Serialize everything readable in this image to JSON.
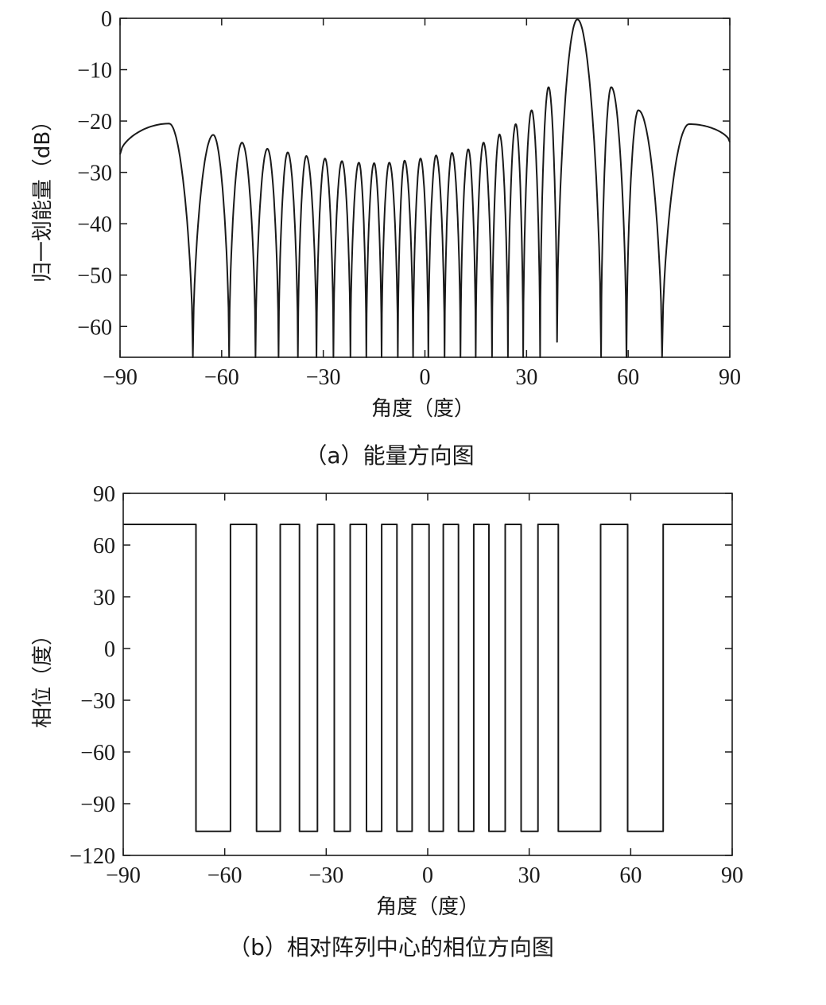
{
  "chart_data": [
    {
      "type": "line",
      "caption": "（a）能量方向图",
      "xlabel": "角度（度）",
      "ylabel": "归一划能量（dB）",
      "xlim": [
        -90,
        90
      ],
      "ylim": [
        -66,
        0
      ],
      "xticks": [
        -90,
        -60,
        -30,
        0,
        30,
        60,
        90
      ],
      "yticks": [
        0,
        -10,
        -20,
        -30,
        -40,
        -50,
        -60
      ],
      "xtick_labels": [
        "−90",
        "−60",
        "−30",
        "0",
        "30",
        "60",
        "90"
      ],
      "ytick_labels": [
        "0",
        "−10",
        "−20",
        "−30",
        "−40",
        "−50",
        "−60"
      ],
      "grid": false,
      "series": [
        {
          "x": [
            -90,
            -75.5,
            -68.5,
            -62.5,
            -57.8,
            -54,
            -50,
            -46.5,
            -43.2,
            -40.5,
            -37.5,
            -35,
            -32,
            -29.5,
            -27,
            -24.5,
            -22,
            -19.5,
            -17.3,
            -15,
            -12.8,
            -10.5,
            -8,
            -6,
            -3.5,
            -1.3,
            1,
            3.3,
            5.8,
            8,
            10.5,
            12.8,
            15,
            17.3,
            19.8,
            22,
            24.5,
            26.8,
            29,
            31.5,
            34,
            36.5,
            39,
            45,
            52,
            55,
            59.5,
            63,
            70,
            78,
            90
          ],
          "y": [
            -26.5,
            -20.5,
            -66,
            -22.7,
            -66,
            -24.2,
            -66,
            -25.4,
            -66,
            -26.1,
            -66,
            -26.8,
            -66,
            -27.3,
            -66,
            -27.8,
            -66,
            -28.1,
            -66,
            -28.2,
            -66,
            -28.1,
            -66,
            -27.7,
            -66,
            -27.3,
            -66,
            -26.7,
            -66,
            -26.2,
            -66,
            -25.5,
            -66,
            -24.2,
            -66,
            -22.6,
            -66,
            -20.6,
            -66,
            -17.9,
            -66,
            -13.4,
            -63,
            -0.2,
            -66,
            -13.4,
            -66,
            -17.9,
            -66,
            -20.6,
            -24.1
          ]
        }
      ]
    },
    {
      "type": "line",
      "caption": "（b）相对阵列中心的相位方向图",
      "xlabel": "角度（度）",
      "ylabel": "相位（度）",
      "xlim": [
        -90,
        90
      ],
      "ylim": [
        -120,
        90
      ],
      "xticks": [
        -90,
        -60,
        -30,
        0,
        30,
        60,
        90
      ],
      "yticks": [
        90,
        60,
        30,
        0,
        -30,
        -60,
        -90,
        -120
      ],
      "xtick_labels": [
        "−90",
        "−60",
        "−30",
        "0",
        "30",
        "60",
        "90"
      ],
      "ytick_labels": [
        "90",
        "60",
        "30",
        "0",
        "−30",
        "−60",
        "−90",
        "−120"
      ],
      "grid": false,
      "high": 72,
      "low": -106,
      "segments": [
        {
          "from": -90,
          "to": -68.5,
          "level": "high"
        },
        {
          "from": -68.5,
          "to": -58.3,
          "level": "low"
        },
        {
          "from": -58.3,
          "to": -50.6,
          "level": "high"
        },
        {
          "from": -50.6,
          "to": -43.6,
          "level": "low"
        },
        {
          "from": -43.6,
          "to": -37.9,
          "level": "high"
        },
        {
          "from": -37.9,
          "to": -32.6,
          "level": "low"
        },
        {
          "from": -32.6,
          "to": -27.6,
          "level": "high"
        },
        {
          "from": -27.6,
          "to": -22.9,
          "level": "low"
        },
        {
          "from": -22.9,
          "to": -18.1,
          "level": "high"
        },
        {
          "from": -18.1,
          "to": -13.6,
          "level": "low"
        },
        {
          "from": -13.6,
          "to": -9.1,
          "level": "high"
        },
        {
          "from": -9.1,
          "to": -4.6,
          "level": "low"
        },
        {
          "from": -4.6,
          "to": 0.4,
          "level": "high"
        },
        {
          "from": 0.4,
          "to": 4.6,
          "level": "low"
        },
        {
          "from": 4.6,
          "to": 9.1,
          "level": "high"
        },
        {
          "from": 9.1,
          "to": 13.6,
          "level": "low"
        },
        {
          "from": 13.6,
          "to": 18.1,
          "level": "high"
        },
        {
          "from": 18.1,
          "to": 22.9,
          "level": "low"
        },
        {
          "from": 22.9,
          "to": 27.6,
          "level": "high"
        },
        {
          "from": 27.6,
          "to": 32.6,
          "level": "low"
        },
        {
          "from": 32.6,
          "to": 38.6,
          "level": "high"
        },
        {
          "from": 38.6,
          "to": 51.1,
          "level": "low"
        },
        {
          "from": 51.1,
          "to": 59.1,
          "level": "high"
        },
        {
          "from": 59.1,
          "to": 69.6,
          "level": "low"
        },
        {
          "from": 69.6,
          "to": 90,
          "level": "high"
        }
      ]
    }
  ]
}
